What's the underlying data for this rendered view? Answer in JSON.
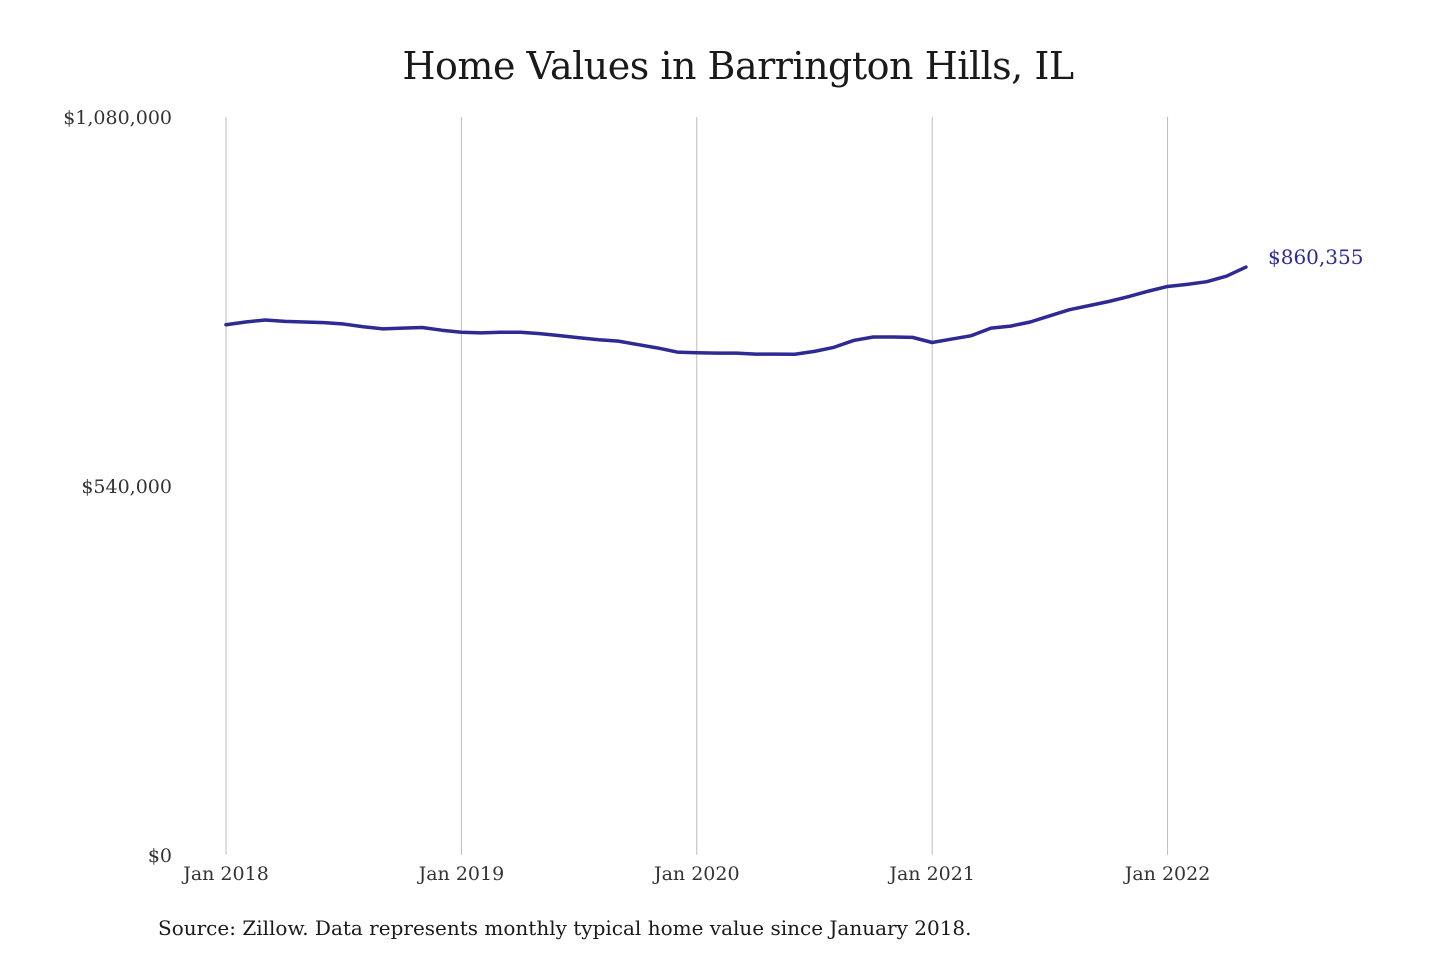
{
  "chart_data": {
    "type": "line",
    "title": "Home Values in Barrington Hills, IL",
    "xlabel": "",
    "ylabel": "",
    "ylim": [
      0,
      1080000
    ],
    "yticks": [
      {
        "value": 0,
        "label": "$0"
      },
      {
        "value": 540000,
        "label": "$540,000"
      },
      {
        "value": 1080000,
        "label": "$1,080,000"
      }
    ],
    "xticks": [
      {
        "index": 0,
        "label": "Jan 2018"
      },
      {
        "index": 12,
        "label": "Jan 2019"
      },
      {
        "index": 24,
        "label": "Jan 2020"
      },
      {
        "index": 36,
        "label": "Jan 2021"
      },
      {
        "index": 48,
        "label": "Jan 2022"
      }
    ],
    "grid": "vertical",
    "line_color": "#2e2a94",
    "series": [
      {
        "name": "",
        "values": [
          776000,
          780000,
          783000,
          781000,
          780000,
          779000,
          777000,
          773000,
          770000,
          771000,
          772000,
          768000,
          765000,
          764000,
          765000,
          765000,
          763000,
          760000,
          757000,
          754000,
          752000,
          747000,
          742000,
          736000,
          735000,
          734500,
          734500,
          733000,
          733000,
          732800,
          737000,
          743000,
          753000,
          758000,
          758000,
          757500,
          750000,
          755000,
          760000,
          771000,
          774000,
          780000,
          789000,
          798000,
          804000,
          810000,
          817000,
          825000,
          832000,
          835000,
          839000,
          847000,
          860355
        ]
      }
    ],
    "end_label": "$860,355",
    "source": "Source: Zillow. Data represents monthly typical home value since January 2018."
  }
}
